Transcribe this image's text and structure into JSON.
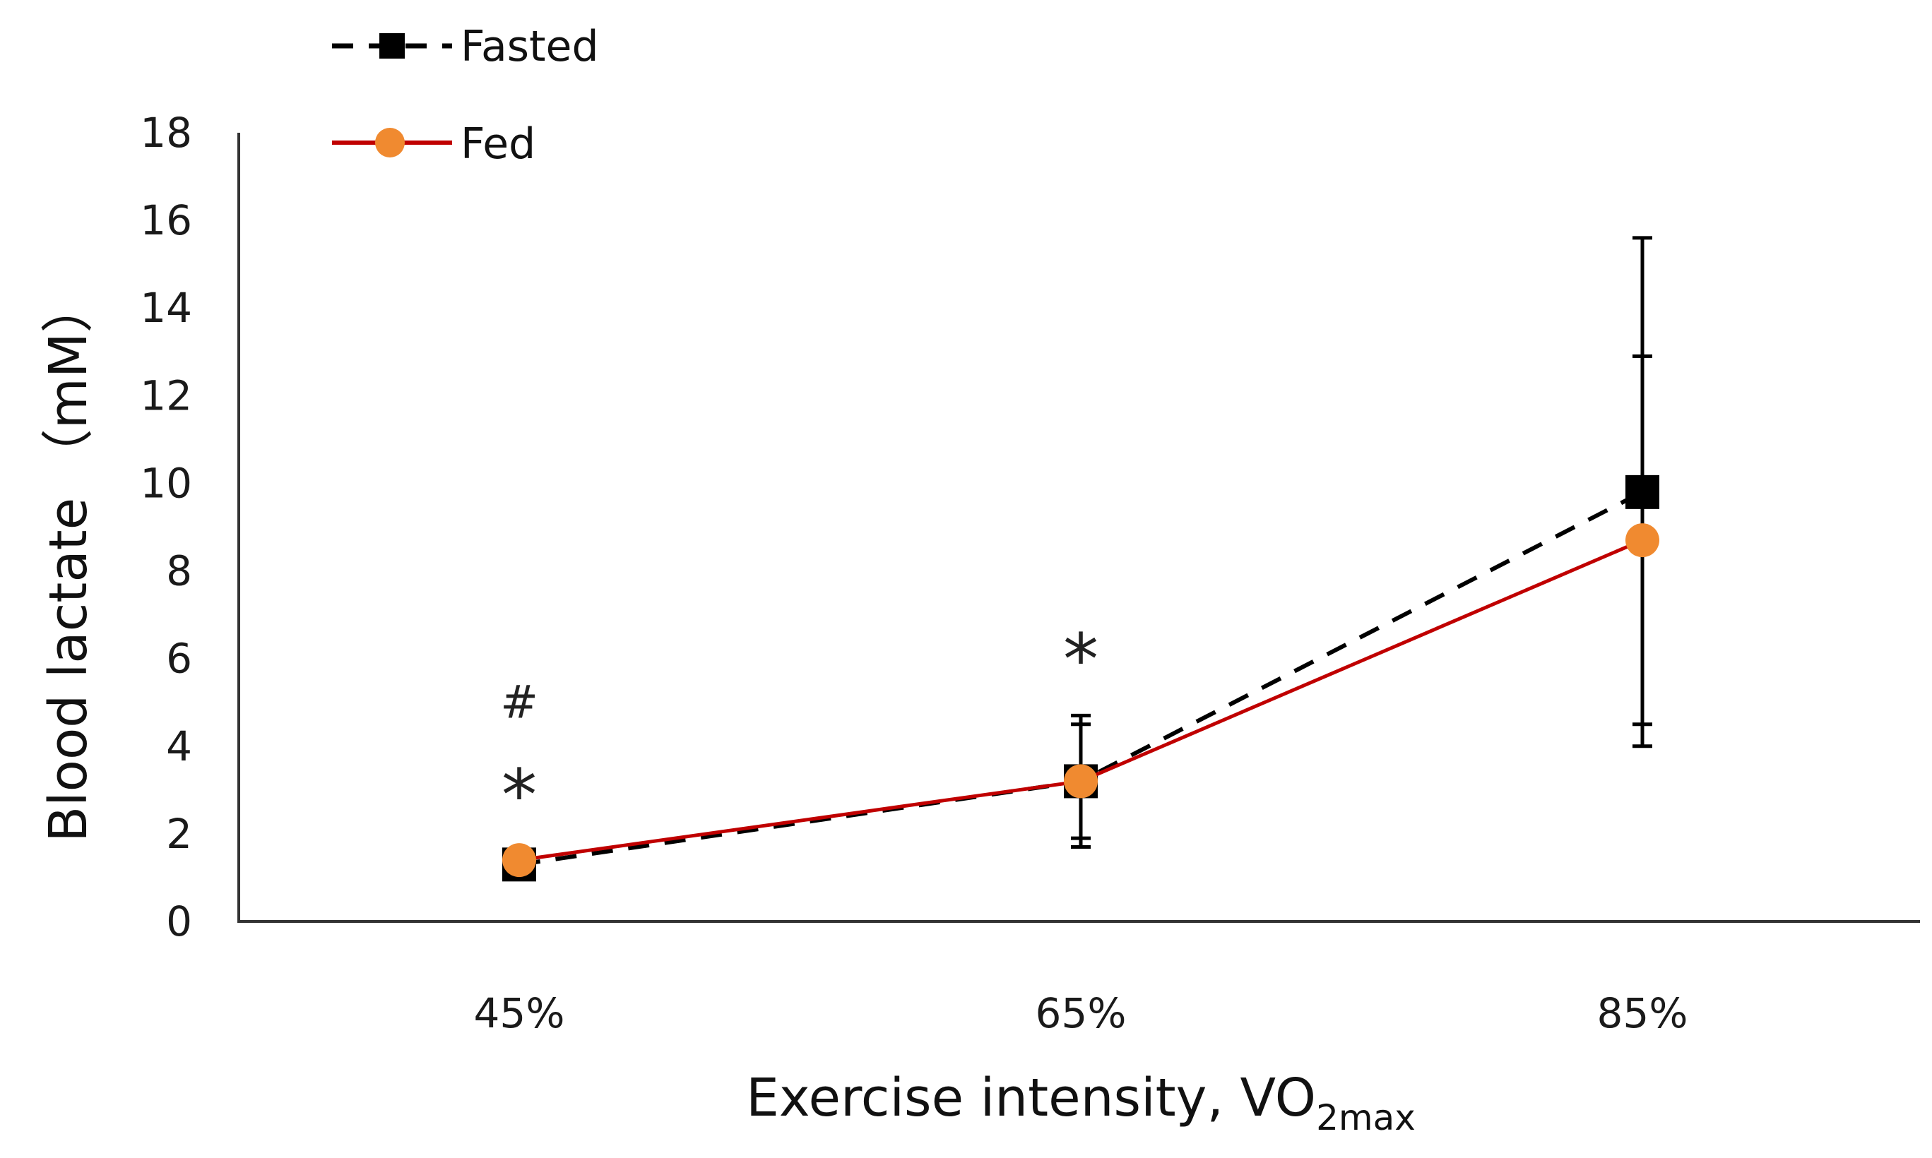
{
  "chart_data": {
    "type": "line",
    "title": "",
    "xlabel": "Exercise intensity, VO",
    "xlabel_subscript": "2max",
    "ylabel": "Blood lactate （mM）",
    "categories": [
      "45%",
      "65%",
      "85%"
    ],
    "ylim": [
      0,
      18
    ],
    "yticks": [
      "0",
      "2",
      "4",
      "6",
      "8",
      "10",
      "12",
      "14",
      "16",
      "18"
    ],
    "grid": false,
    "legend_position": "top-left",
    "series": [
      {
        "name": "Fasted",
        "values": [
          1.3,
          3.2,
          9.8
        ],
        "error": [
          0.3,
          1.5,
          5.8
        ],
        "color": "#000000",
        "line": "dashed",
        "marker": "square"
      },
      {
        "name": "Fed",
        "values": [
          1.4,
          3.2,
          8.7
        ],
        "error": [
          0.2,
          1.3,
          4.2
        ],
        "color": "#c00000",
        "marker_color": "#f08a30",
        "line": "solid",
        "marker": "circle"
      }
    ],
    "annotations": [
      {
        "category": "45%",
        "text": "#",
        "y": 5.0
      },
      {
        "category": "45%",
        "text": "*",
        "y": 3.1
      },
      {
        "category": "65%",
        "text": "*",
        "y": 6.2
      }
    ]
  }
}
